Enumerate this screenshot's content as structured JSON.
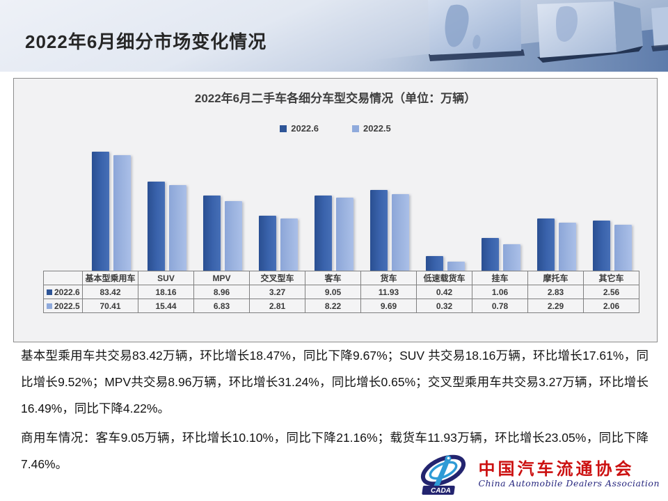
{
  "slide": {
    "title": "2022年6月细分市场变化情况"
  },
  "chart": {
    "title": "2022年6月二手车各细分车型交易情况（单位：万辆）",
    "legend": [
      {
        "label": "2022.6",
        "color": "#2e5597"
      },
      {
        "label": "2022.5",
        "color": "#8faadc"
      }
    ]
  },
  "chart_data": {
    "type": "bar",
    "title": "2022年6月二手车各细分车型交易情况（单位：万辆）",
    "categories": [
      "基本型乘用车",
      "SUV",
      "MPV",
      "交叉型车",
      "客车",
      "货车",
      "低速载货车",
      "挂车",
      "摩托车",
      "其它车"
    ],
    "series": [
      {
        "name": "2022.6",
        "color": "#2e5597",
        "values": [
          83.42,
          18.16,
          8.96,
          3.27,
          9.05,
          11.93,
          0.42,
          1.06,
          2.83,
          2.56
        ]
      },
      {
        "name": "2022.5",
        "color": "#8faadc",
        "values": [
          70.41,
          15.44,
          6.83,
          2.81,
          8.22,
          9.69,
          0.32,
          0.78,
          2.29,
          2.06
        ]
      }
    ],
    "unit": "万辆",
    "axis_scale": "logarithmic",
    "axis_range_estimate": [
      0.2,
      100
    ],
    "grid": false,
    "legend_position": "top",
    "data_table_shown": true
  },
  "body": {
    "paragraph1": "基本型乘用车共交易83.42万辆，环比增长18.47%，同比下降9.67%；SUV 共交易18.16万辆，环比增长17.61%，同比增长9.52%；MPV共交易8.96万辆，环比增长31.24%，同比增长0.65%；交叉型乘用车共交易3.27万辆，环比增长16.49%，同比下降4.22%。",
    "paragraph2": "商用车情况：客车9.05万辆，环比增长10.10%，同比下降21.16%；载货车11.93万辆，环比增长23.05%，同比下降7.46%。"
  },
  "logo": {
    "abbr": "CADA",
    "name_cn": "中国汽车流通协会",
    "name_en": "China Automobile Dealers Association",
    "colors": {
      "navy": "#23246f",
      "light_blue": "#2e9bd6",
      "red": "#cc1111"
    }
  }
}
